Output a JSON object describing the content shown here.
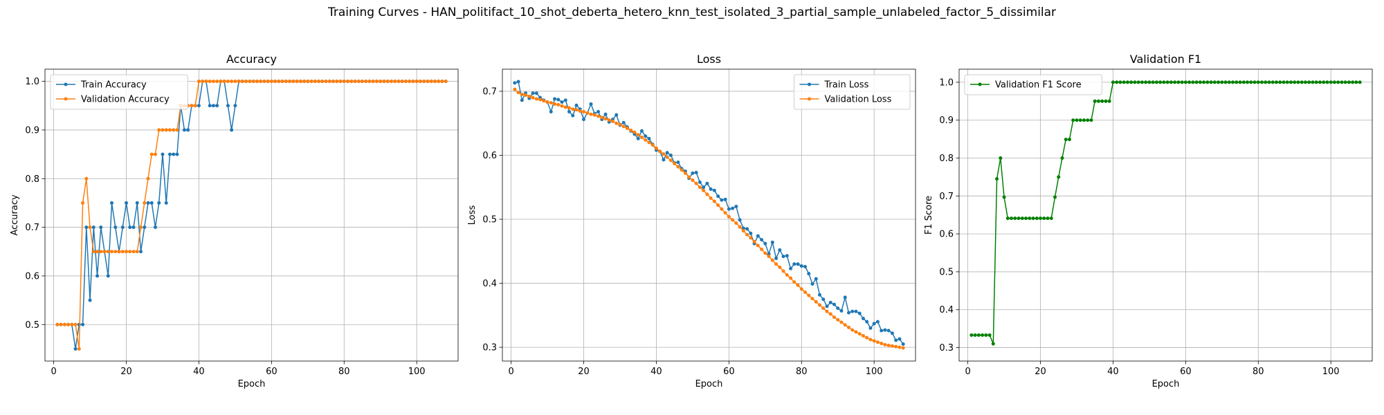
{
  "suptitle": "Training Curves - HAN_politifact_10_shot_deberta_hetero_knn_test_isolated_3_partial_sample_unlabeled_factor_5_dissimilar",
  "chart_data": [
    {
      "type": "line",
      "title": "Accuracy",
      "xlabel": "Epoch",
      "ylabel": "Accuracy",
      "xlim": [
        -2.4,
        111.4
      ],
      "ylim": [
        0.425,
        1.025
      ],
      "xticks": [
        0,
        20,
        40,
        60,
        80,
        100
      ],
      "yticks": [
        0.5,
        0.6,
        0.7,
        0.8,
        0.9,
        1.0
      ],
      "ytick_labels": [
        "0.5",
        "0.6",
        "0.7",
        "0.8",
        "0.9",
        "1.0"
      ],
      "grid": true,
      "legend": "upper-left",
      "series": [
        {
          "name": "Train Accuracy",
          "color": "#1f77b4",
          "x_start": 1,
          "values": [
            0.5,
            0.5,
            0.5,
            0.5,
            0.5,
            0.45,
            0.5,
            0.5,
            0.7,
            0.55,
            0.7,
            0.6,
            0.7,
            0.65,
            0.6,
            0.75,
            0.7,
            0.65,
            0.7,
            0.75,
            0.7,
            0.7,
            0.75,
            0.65,
            0.7,
            0.75,
            0.75,
            0.7,
            0.75,
            0.85,
            0.75,
            0.85,
            0.85,
            0.85,
            0.95,
            0.9,
            0.9,
            0.95,
            0.95,
            0.95,
            1.0,
            1.0,
            0.95,
            0.95,
            0.95,
            1.0,
            1.0,
            0.95,
            0.9,
            0.95,
            1.0,
            1.0,
            1.0,
            1.0,
            1.0,
            1.0,
            1.0,
            1.0,
            1.0,
            1.0,
            1.0,
            1.0,
            1.0,
            1.0,
            1.0,
            1.0,
            1.0,
            1.0,
            1.0,
            1.0,
            1.0,
            1.0,
            1.0,
            1.0,
            1.0,
            1.0,
            1.0,
            1.0,
            1.0,
            1.0,
            1.0,
            1.0,
            1.0,
            1.0,
            1.0,
            1.0,
            1.0,
            1.0,
            1.0,
            1.0,
            1.0,
            1.0,
            1.0,
            1.0,
            1.0,
            1.0,
            1.0,
            1.0,
            1.0,
            1.0,
            1.0,
            1.0,
            1.0,
            1.0,
            1.0,
            1.0,
            1.0,
            1.0
          ]
        },
        {
          "name": "Validation Accuracy",
          "color": "#ff7f0e",
          "x_start": 1,
          "values": [
            0.5,
            0.5,
            0.5,
            0.5,
            0.5,
            0.5,
            0.45,
            0.75,
            0.8,
            0.7,
            0.65,
            0.65,
            0.65,
            0.65,
            0.65,
            0.65,
            0.65,
            0.65,
            0.65,
            0.65,
            0.65,
            0.65,
            0.65,
            0.7,
            0.75,
            0.8,
            0.85,
            0.85,
            0.9,
            0.9,
            0.9,
            0.9,
            0.9,
            0.9,
            0.95,
            0.95,
            0.95,
            0.95,
            0.95,
            1.0,
            1.0,
            1.0,
            1.0,
            1.0,
            1.0,
            1.0,
            1.0,
            1.0,
            1.0,
            1.0,
            1.0,
            1.0,
            1.0,
            1.0,
            1.0,
            1.0,
            1.0,
            1.0,
            1.0,
            1.0,
            1.0,
            1.0,
            1.0,
            1.0,
            1.0,
            1.0,
            1.0,
            1.0,
            1.0,
            1.0,
            1.0,
            1.0,
            1.0,
            1.0,
            1.0,
            1.0,
            1.0,
            1.0,
            1.0,
            1.0,
            1.0,
            1.0,
            1.0,
            1.0,
            1.0,
            1.0,
            1.0,
            1.0,
            1.0,
            1.0,
            1.0,
            1.0,
            1.0,
            1.0,
            1.0,
            1.0,
            1.0,
            1.0,
            1.0,
            1.0,
            1.0,
            1.0,
            1.0,
            1.0,
            1.0,
            1.0,
            1.0,
            1.0
          ]
        }
      ]
    },
    {
      "type": "line",
      "title": "Loss",
      "xlabel": "Epoch",
      "ylabel": "Loss",
      "xlim": [
        -2.4,
        111.4
      ],
      "ylim": [
        0.2785,
        0.7345
      ],
      "xticks": [
        0,
        20,
        40,
        60,
        80,
        100
      ],
      "yticks": [
        0.3,
        0.4,
        0.5,
        0.6,
        0.7
      ],
      "ytick_labels": [
        "0.3",
        "0.4",
        "0.5",
        "0.6",
        "0.7"
      ],
      "grid": true,
      "legend": "upper-right",
      "series": [
        {
          "name": "Train Loss",
          "color": "#1f77b4",
          "x_start": 1,
          "values": [
            0.713,
            0.715,
            0.686,
            0.697,
            0.689,
            0.697,
            0.697,
            0.69,
            0.686,
            0.683,
            0.668,
            0.688,
            0.687,
            0.683,
            0.686,
            0.668,
            0.662,
            0.678,
            0.672,
            0.656,
            0.666,
            0.68,
            0.665,
            0.668,
            0.656,
            0.664,
            0.652,
            0.656,
            0.663,
            0.647,
            0.651,
            0.644,
            0.638,
            0.633,
            0.626,
            0.638,
            0.63,
            0.626,
            0.617,
            0.608,
            0.606,
            0.593,
            0.604,
            0.6,
            0.588,
            0.589,
            0.579,
            0.575,
            0.564,
            0.572,
            0.573,
            0.558,
            0.55,
            0.556,
            0.547,
            0.545,
            0.536,
            0.53,
            0.531,
            0.516,
            0.517,
            0.52,
            0.499,
            0.486,
            0.485,
            0.478,
            0.462,
            0.474,
            0.468,
            0.462,
            0.446,
            0.464,
            0.439,
            0.452,
            0.442,
            0.443,
            0.423,
            0.43,
            0.43,
            0.427,
            0.426,
            0.415,
            0.399,
            0.407,
            0.382,
            0.375,
            0.364,
            0.37,
            0.367,
            0.361,
            0.357,
            0.378,
            0.354,
            0.356,
            0.356,
            0.353,
            0.345,
            0.34,
            0.33,
            0.337,
            0.34,
            0.326,
            0.327,
            0.326,
            0.322,
            0.311,
            0.313,
            0.305
          ]
        },
        {
          "name": "Validation Loss",
          "color": "#ff7f0e",
          "x_start": 1,
          "values": [
            0.703,
            0.698,
            0.695,
            0.694,
            0.692,
            0.69,
            0.688,
            0.687,
            0.685,
            0.683,
            0.682,
            0.68,
            0.679,
            0.677,
            0.675,
            0.674,
            0.672,
            0.671,
            0.669,
            0.668,
            0.666,
            0.664,
            0.663,
            0.661,
            0.659,
            0.657,
            0.655,
            0.653,
            0.65,
            0.648,
            0.645,
            0.642,
            0.639,
            0.636,
            0.632,
            0.628,
            0.624,
            0.62,
            0.616,
            0.611,
            0.606,
            0.602,
            0.597,
            0.592,
            0.587,
            0.582,
            0.577,
            0.572,
            0.566,
            0.561,
            0.556,
            0.55,
            0.545,
            0.539,
            0.533,
            0.528,
            0.522,
            0.516,
            0.51,
            0.504,
            0.499,
            0.494,
            0.488,
            0.482,
            0.476,
            0.471,
            0.465,
            0.459,
            0.453,
            0.447,
            0.442,
            0.436,
            0.43,
            0.425,
            0.419,
            0.413,
            0.408,
            0.402,
            0.397,
            0.391,
            0.386,
            0.381,
            0.376,
            0.371,
            0.366,
            0.361,
            0.356,
            0.352,
            0.347,
            0.343,
            0.339,
            0.335,
            0.331,
            0.327,
            0.324,
            0.321,
            0.318,
            0.315,
            0.312,
            0.31,
            0.308,
            0.306,
            0.304,
            0.303,
            0.302,
            0.301,
            0.3,
            0.299
          ]
        }
      ]
    },
    {
      "type": "line",
      "title": "Validation F1",
      "xlabel": "Epoch",
      "ylabel": "F1 Score",
      "xlim": [
        -2.4,
        111.4
      ],
      "ylim": [
        0.2645,
        1.0345
      ],
      "xticks": [
        0,
        20,
        40,
        60,
        80,
        100
      ],
      "yticks": [
        0.3,
        0.4,
        0.5,
        0.6,
        0.7,
        0.8,
        0.9,
        1.0
      ],
      "ytick_labels": [
        "0.3",
        "0.4",
        "0.5",
        "0.6",
        "0.7",
        "0.8",
        "0.9",
        "1.0"
      ],
      "grid": true,
      "legend": "upper-left",
      "series": [
        {
          "name": "Validation F1 Score",
          "color": "#008000",
          "x_start": 1,
          "values": [
            0.333,
            0.333,
            0.333,
            0.333,
            0.333,
            0.333,
            0.31,
            0.745,
            0.8,
            0.697,
            0.641,
            0.641,
            0.641,
            0.641,
            0.641,
            0.641,
            0.641,
            0.641,
            0.641,
            0.641,
            0.641,
            0.641,
            0.641,
            0.697,
            0.75,
            0.8,
            0.849,
            0.849,
            0.9,
            0.9,
            0.9,
            0.9,
            0.9,
            0.9,
            0.95,
            0.95,
            0.95,
            0.95,
            0.95,
            1.0,
            1.0,
            1.0,
            1.0,
            1.0,
            1.0,
            1.0,
            1.0,
            1.0,
            1.0,
            1.0,
            1.0,
            1.0,
            1.0,
            1.0,
            1.0,
            1.0,
            1.0,
            1.0,
            1.0,
            1.0,
            1.0,
            1.0,
            1.0,
            1.0,
            1.0,
            1.0,
            1.0,
            1.0,
            1.0,
            1.0,
            1.0,
            1.0,
            1.0,
            1.0,
            1.0,
            1.0,
            1.0,
            1.0,
            1.0,
            1.0,
            1.0,
            1.0,
            1.0,
            1.0,
            1.0,
            1.0,
            1.0,
            1.0,
            1.0,
            1.0,
            1.0,
            1.0,
            1.0,
            1.0,
            1.0,
            1.0,
            1.0,
            1.0,
            1.0,
            1.0,
            1.0,
            1.0,
            1.0,
            1.0,
            1.0,
            1.0,
            1.0,
            1.0
          ]
        }
      ]
    }
  ]
}
